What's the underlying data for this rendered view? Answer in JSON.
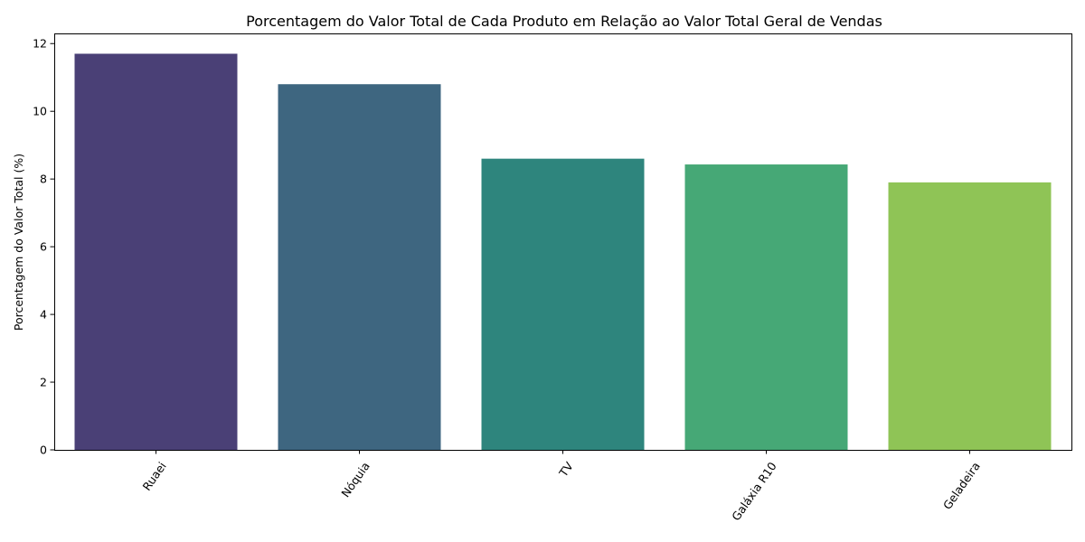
{
  "chart_data": {
    "type": "bar",
    "title": "Porcentagem do Valor Total de Cada Produto em Relação ao Valor Total Geral de Vendas",
    "xlabel": "",
    "ylabel": "Porcentagem do Valor Total (%)",
    "categories": [
      "Ruaei",
      "Nóquia",
      "TV",
      "Galáxia R10",
      "Geladeira"
    ],
    "values": [
      11.7,
      10.8,
      8.6,
      8.43,
      7.9
    ],
    "colors": [
      "#4a4076",
      "#3e6680",
      "#2e857d",
      "#46a876",
      "#8fc456"
    ],
    "ylim": [
      0,
      12.3
    ],
    "yticks": [
      0,
      2,
      4,
      6,
      8,
      10,
      12
    ],
    "ytick_labels": [
      "0",
      "2",
      "4",
      "6",
      "8",
      "10",
      "12"
    ],
    "grid": false,
    "legend": "none"
  }
}
